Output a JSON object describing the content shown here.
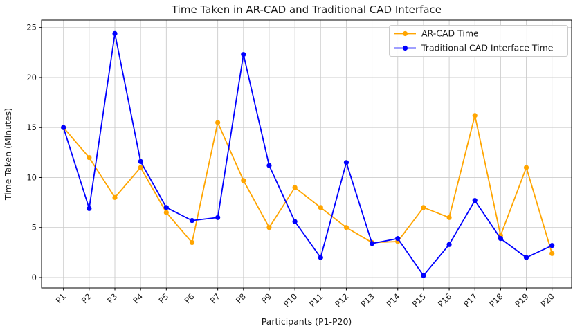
{
  "chart_data": {
    "type": "line",
    "title": "Time Taken in AR-CAD and Traditional CAD Interface",
    "xlabel": "Participants (P1-P20)",
    "ylabel": "Time Taken (Minutes)",
    "x": [
      "P1",
      "P2",
      "P3",
      "P4",
      "P5",
      "P6",
      "P7",
      "P8",
      "P9",
      "P10",
      "P11",
      "P12",
      "P13",
      "P14",
      "P15",
      "P16",
      "P17",
      "P18",
      "P19",
      "P20"
    ],
    "series": [
      {
        "name": "AR-CAD Time",
        "color": "#FFA500",
        "values": [
          15.0,
          12.0,
          8.0,
          11.0,
          6.5,
          3.5,
          15.5,
          9.7,
          5.0,
          9.0,
          7.0,
          5.0,
          3.5,
          3.6,
          7.0,
          6.0,
          16.2,
          4.2,
          11.0,
          2.4
        ]
      },
      {
        "name": "Traditional CAD Interface Time",
        "color": "#0000FF",
        "values": [
          15.0,
          6.9,
          24.4,
          11.6,
          7.0,
          5.7,
          6.0,
          22.3,
          11.2,
          5.6,
          2.0,
          11.5,
          3.4,
          3.9,
          0.2,
          3.3,
          7.7,
          3.9,
          2.0,
          3.2
        ]
      }
    ],
    "yticks": [
      0,
      5,
      10,
      15,
      20,
      25
    ],
    "ylim": [
      -1.04,
      25.74
    ],
    "grid": true,
    "grid_color": "#cccccc",
    "spine_color": "#000000",
    "legend_position": "top-right"
  }
}
